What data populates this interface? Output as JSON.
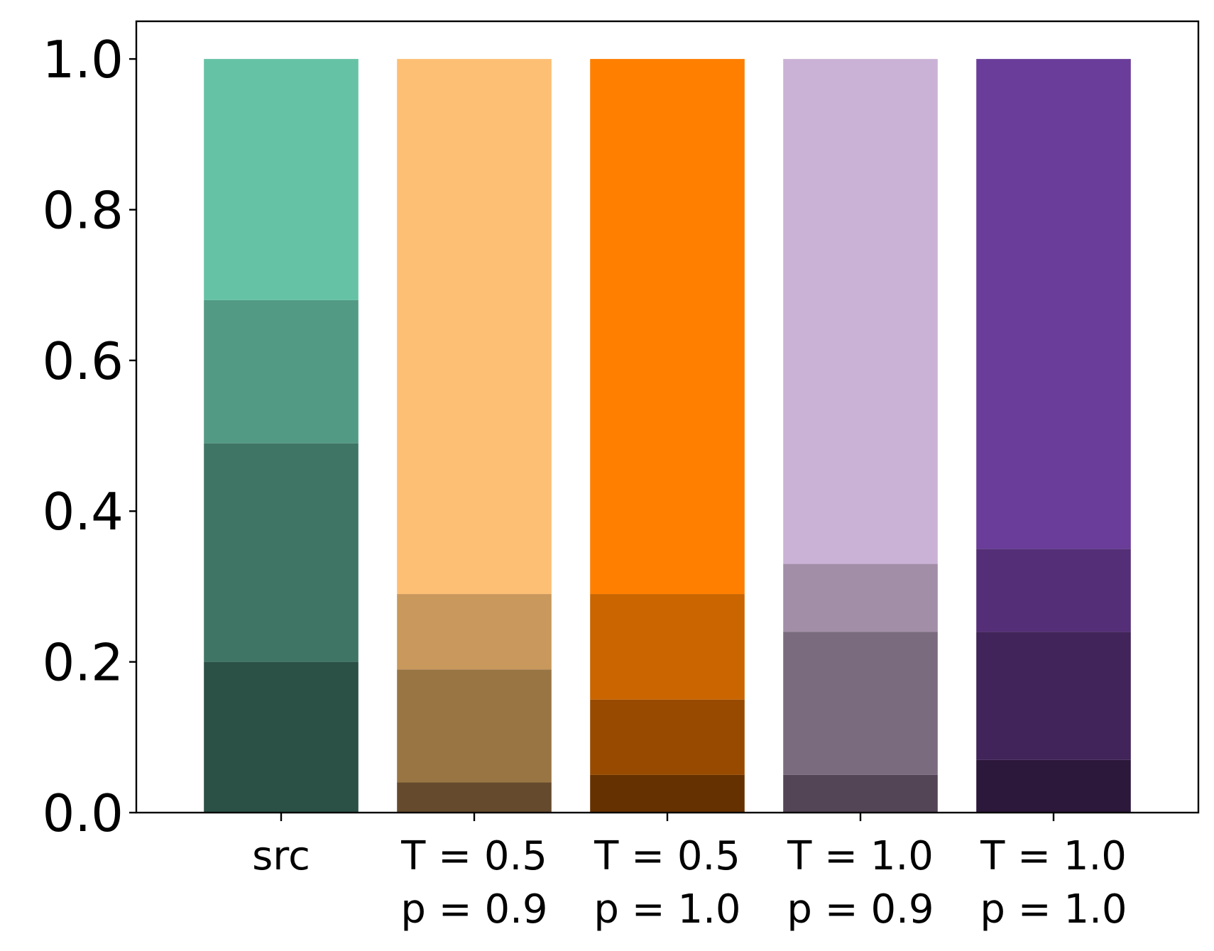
{
  "chart_data": {
    "type": "bar",
    "stacked": true,
    "title": "",
    "xlabel": "",
    "ylabel": "",
    "ylim": [
      0,
      1.05
    ],
    "yticks": [
      "0.0",
      "0.2",
      "0.4",
      "0.6",
      "0.8",
      "1.0"
    ],
    "grid": false,
    "categories": [
      {
        "line1": "src",
        "line2": ""
      },
      {
        "line1": "T = 0.5",
        "line2": "p = 0.9"
      },
      {
        "line1": "T = 0.5",
        "line2": "p = 1.0"
      },
      {
        "line1": "T = 1.0",
        "line2": "p = 0.9"
      },
      {
        "line1": "T = 1.0",
        "line2": "p = 1.0"
      }
    ],
    "bars": [
      {
        "segments": [
          {
            "value": 0.2,
            "color": "#2b5045"
          },
          {
            "value": 0.29,
            "color": "#3f7565"
          },
          {
            "value": 0.19,
            "color": "#529a84"
          },
          {
            "value": 0.32,
            "color": "#66c2a5"
          }
        ]
      },
      {
        "segments": [
          {
            "value": 0.04,
            "color": "#654a2e"
          },
          {
            "value": 0.15,
            "color": "#997544"
          },
          {
            "value": 0.1,
            "color": "#c8985c"
          },
          {
            "value": 0.71,
            "color": "#fdbf74"
          }
        ]
      },
      {
        "segments": [
          {
            "value": 0.05,
            "color": "#653100"
          },
          {
            "value": 0.1,
            "color": "#984a00"
          },
          {
            "value": 0.14,
            "color": "#ca6500"
          },
          {
            "value": 0.71,
            "color": "#ff7f00"
          }
        ]
      },
      {
        "segments": [
          {
            "value": 0.05,
            "color": "#534556"
          },
          {
            "value": 0.19,
            "color": "#7a6c7e"
          },
          {
            "value": 0.09,
            "color": "#a28ea7"
          },
          {
            "value": 0.67,
            "color": "#cab2d6"
          }
        ]
      },
      {
        "segments": [
          {
            "value": 0.07,
            "color": "#2c183b"
          },
          {
            "value": 0.17,
            "color": "#40245a"
          },
          {
            "value": 0.11,
            "color": "#542f78"
          },
          {
            "value": 0.65,
            "color": "#6a3d9a"
          }
        ]
      }
    ]
  }
}
